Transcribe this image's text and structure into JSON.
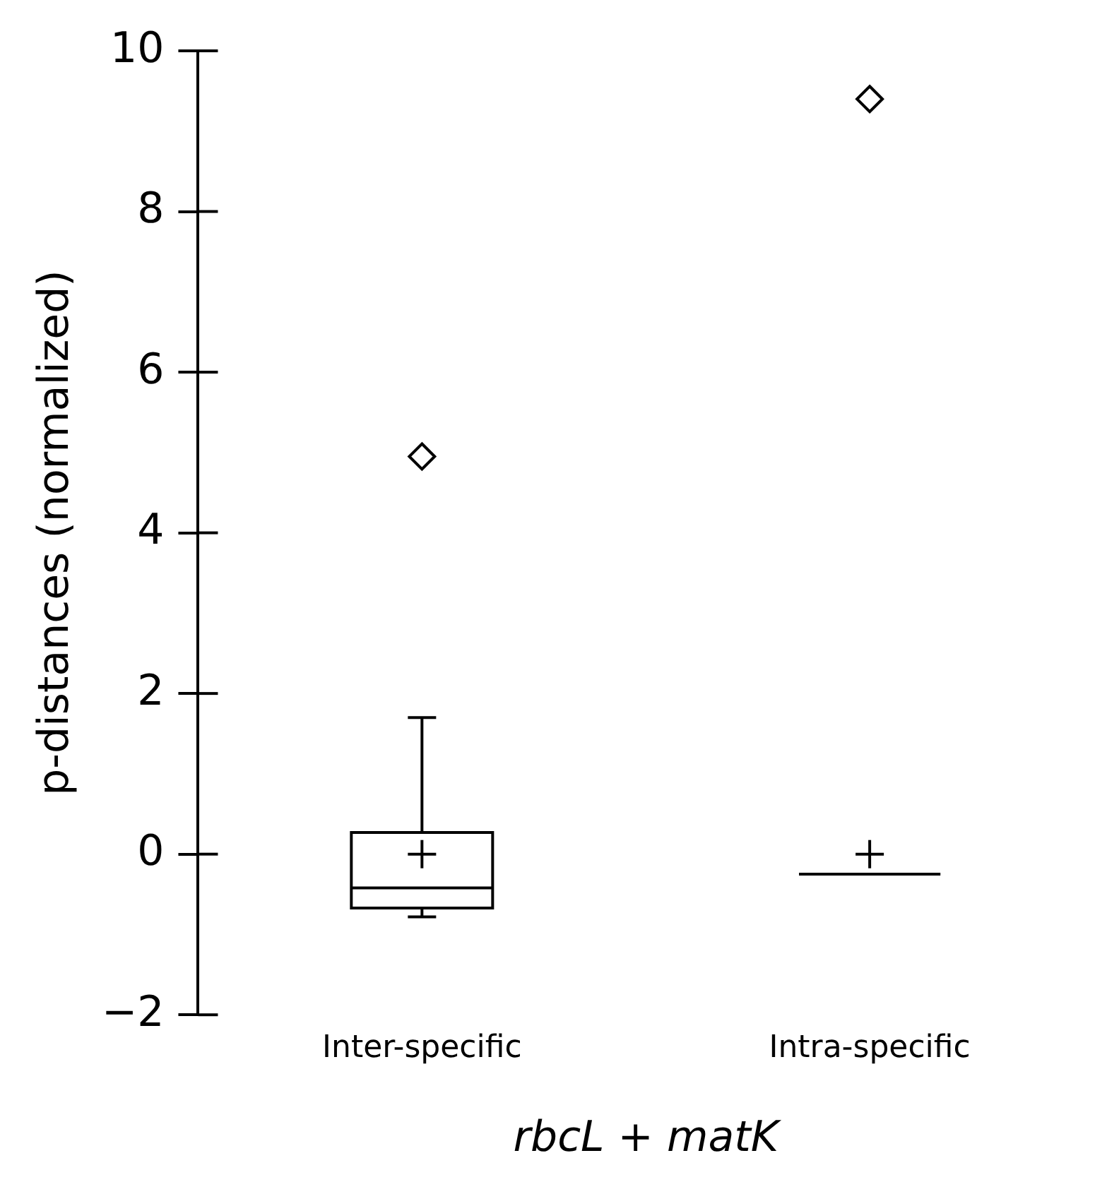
{
  "chart_data": {
    "type": "box",
    "categories": [
      "Inter-specific",
      "Intra-specific"
    ],
    "boxes": [
      {
        "low": -0.78,
        "q1": -0.67,
        "median": -0.42,
        "q3": 0.27,
        "high": 1.7,
        "mean": 0,
        "outliers": [
          4.95
        ]
      },
      {
        "low": -0.25,
        "q1": -0.25,
        "median": -0.25,
        "q3": -0.25,
        "high": -0.25,
        "mean": 0,
        "outliers": [
          9.4
        ]
      }
    ],
    "color": "#000000",
    "xlabel": "rbcL + matK",
    "ylabel": "p-distances (normalized)",
    "ylim": [
      -2,
      10
    ],
    "yticks": [
      -2,
      0,
      2,
      4,
      6,
      8,
      10
    ],
    "grid": false,
    "legend": false
  }
}
